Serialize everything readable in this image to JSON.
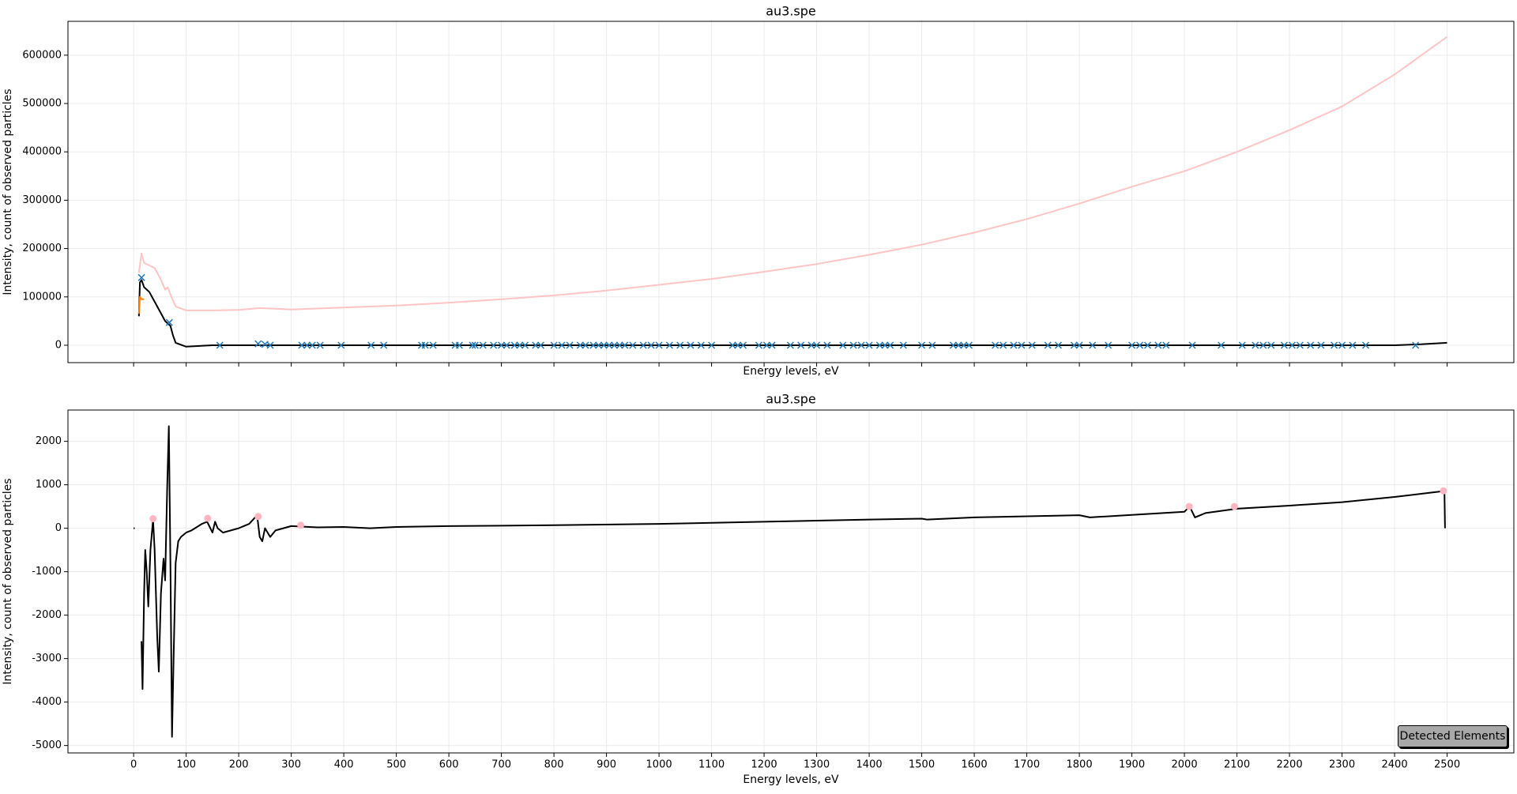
{
  "chart_data": [
    {
      "type": "line",
      "title": "au3.spe",
      "xlabel": "Energy levels, eV",
      "ylabel": "Intensity, count of observed particles",
      "xlim": [
        -125,
        2627
      ],
      "ylim": [
        -36000,
        670000
      ],
      "xticks": [
        0,
        100,
        200,
        300,
        400,
        500,
        600,
        700,
        800,
        900,
        1000,
        1100,
        1200,
        1300,
        1400,
        1500,
        1600,
        1700,
        1800,
        1900,
        2000,
        2100,
        2200,
        2300,
        2400,
        2500
      ],
      "yticks": [
        0,
        100000,
        200000,
        300000,
        400000,
        500000,
        600000
      ],
      "grid": true,
      "xtick_labels": false,
      "series": [
        {
          "color": "#ffc4c4",
          "x": [
            10,
            15,
            20,
            30,
            40,
            50,
            60,
            65,
            70,
            80,
            100,
            150,
            200,
            240,
            300,
            400,
            500,
            600,
            700,
            800,
            900,
            1000,
            1100,
            1200,
            1300,
            1400,
            1500,
            1600,
            1700,
            1800,
            1900,
            2000,
            2100,
            2200,
            2300,
            2400,
            2500
          ],
          "values": [
            150000,
            190000,
            170000,
            165000,
            160000,
            140000,
            115000,
            120000,
            105000,
            80000,
            72000,
            72000,
            73000,
            77000,
            74000,
            78000,
            82000,
            88000,
            95000,
            103000,
            113000,
            125000,
            137000,
            152000,
            168000,
            187000,
            208000,
            233000,
            261000,
            293000,
            328000,
            360000,
            400000,
            445000,
            494000,
            560000,
            638000
          ]
        },
        {
          "color": "#000000",
          "x": [
            10,
            12,
            15,
            20,
            30,
            40,
            50,
            60,
            65,
            70,
            75,
            80,
            100,
            150,
            200,
            400,
            800,
            1200,
            1600,
            2000,
            2400,
            2450,
            2500
          ],
          "values": [
            60000,
            130000,
            135000,
            120000,
            110000,
            90000,
            70000,
            50000,
            45000,
            40000,
            20000,
            5000,
            -3000,
            0,
            0,
            0,
            0,
            0,
            0,
            0,
            0,
            2000,
            5000
          ]
        },
        {
          "color": "#ff7f0e",
          "x": [
            10,
            12,
            15,
            20
          ],
          "values": [
            65000,
            100000,
            95000,
            95000
          ]
        },
        {
          "color": "#1f77b4",
          "marker": "x",
          "x": [
            15,
            68,
            164,
            237,
            250,
            260,
            320,
            330,
            340,
            355,
            395,
            452,
            476,
            548,
            555,
            570,
            612,
            620,
            645,
            650,
            665,
            685,
            700,
            710,
            725,
            735,
            745,
            765,
            775,
            800,
            815,
            830,
            850,
            860,
            875,
            885,
            895,
            905,
            915,
            925,
            935,
            950,
            970,
            985,
            1000,
            1020,
            1040,
            1060,
            1080,
            1100,
            1140,
            1150,
            1160,
            1190,
            1205,
            1215,
            1250,
            1270,
            1290,
            1300,
            1320,
            1350,
            1370,
            1385,
            1400,
            1420,
            1430,
            1440,
            1465,
            1500,
            1520,
            1560,
            1570,
            1580,
            1590,
            1640,
            1655,
            1675,
            1690,
            1710,
            1740,
            1760,
            1790,
            1800,
            1825,
            1855,
            1900,
            1915,
            1930,
            1950,
            1965,
            2015,
            2070,
            2110,
            2135,
            2150,
            2165,
            2190,
            2205,
            2220,
            2240,
            2260,
            2285,
            2300,
            2320,
            2345,
            2440
          ],
          "values": [
            140000,
            47000,
            0,
            3000,
            2000,
            0,
            0,
            0,
            0,
            0,
            0,
            0,
            0,
            0,
            0,
            0,
            0,
            0,
            0,
            0,
            0,
            0,
            0,
            0,
            0,
            0,
            0,
            0,
            0,
            0,
            0,
            0,
            0,
            0,
            0,
            0,
            0,
            0,
            0,
            0,
            0,
            0,
            0,
            0,
            0,
            0,
            0,
            0,
            0,
            0,
            0,
            0,
            0,
            0,
            0,
            0,
            0,
            0,
            0,
            0,
            0,
            0,
            0,
            0,
            0,
            0,
            0,
            0,
            0,
            0,
            0,
            0,
            0,
            0,
            0,
            0,
            0,
            0,
            0,
            0,
            0,
            0,
            0,
            0,
            0,
            0,
            0,
            0,
            0,
            0,
            0,
            0,
            0,
            0,
            0,
            0,
            0,
            0,
            0,
            0,
            0,
            0,
            0,
            0,
            0,
            0,
            0
          ]
        }
      ]
    },
    {
      "type": "line",
      "title": "au3.spe",
      "xlabel": "Energy levels, eV",
      "ylabel": "Intensity, count of observed particles",
      "xlim": [
        -125,
        2627
      ],
      "ylim": [
        -5170,
        2720
      ],
      "xticks": [
        0,
        100,
        200,
        300,
        400,
        500,
        600,
        700,
        800,
        900,
        1000,
        1100,
        1200,
        1300,
        1400,
        1500,
        1600,
        1700,
        1800,
        1900,
        2000,
        2100,
        2200,
        2300,
        2400,
        2500
      ],
      "yticks": [
        -5000,
        -4000,
        -3000,
        -2000,
        -1000,
        0,
        1000,
        2000
      ],
      "grid": true,
      "xtick_labels": true,
      "series": [
        {
          "color": "#000000",
          "x": [
            0,
            2,
            8,
            15,
            17,
            20,
            22,
            25,
            28,
            32,
            37,
            40,
            45,
            48,
            52,
            57,
            60,
            64,
            67,
            70,
            73,
            76,
            80,
            85,
            90,
            100,
            110,
            130,
            140,
            150,
            155,
            160,
            170,
            200,
            220,
            235,
            240,
            245,
            250,
            260,
            270,
            300,
            350,
            400,
            450,
            500,
            600,
            800,
            1000,
            1200,
            1400,
            1500,
            1510,
            1600,
            1800,
            1820,
            2000,
            2010,
            2020,
            2040,
            2100,
            2200,
            2300,
            2400,
            2490,
            2495,
            2496
          ],
          "values": [
            0,
            0,
            null,
            -2600,
            -3700,
            -1500,
            -500,
            -1000,
            -1800,
            -500,
            200,
            -500,
            -2500,
            -3300,
            -1500,
            -700,
            -1200,
            1000,
            2350,
            -800,
            -4800,
            -3000,
            -800,
            -300,
            -200,
            -100,
            -50,
            100,
            150,
            -100,
            150,
            0,
            -100,
            0,
            100,
            300,
            -200,
            -300,
            0,
            -200,
            -50,
            50,
            20,
            30,
            0,
            30,
            50,
            70,
            100,
            150,
            200,
            220,
            200,
            250,
            300,
            250,
            380,
            500,
            250,
            350,
            450,
            520,
            600,
            720,
            850,
            800,
            0
          ]
        },
        {
          "color": "#ffb6c1",
          "marker": "o",
          "x": [
            37,
            141,
            237,
            318,
            2009,
            2095,
            2493
          ],
          "values": [
            220,
            230,
            270,
            70,
            500,
            500,
            860
          ]
        }
      ]
    }
  ],
  "button": {
    "label": "Detected Elements"
  }
}
